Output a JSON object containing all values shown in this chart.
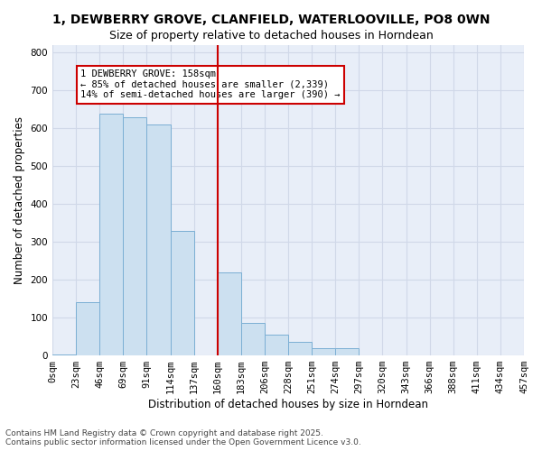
{
  "title": "1, DEWBERRY GROVE, CLANFIELD, WATERLOOVILLE, PO8 0WN",
  "subtitle": "Size of property relative to detached houses in Horndean",
  "xlabel": "Distribution of detached houses by size in Horndean",
  "ylabel": "Number of detached properties",
  "bins": [
    "0sqm",
    "23sqm",
    "46sqm",
    "69sqm",
    "91sqm",
    "114sqm",
    "137sqm",
    "160sqm",
    "183sqm",
    "206sqm",
    "228sqm",
    "251sqm",
    "274sqm",
    "297sqm",
    "320sqm",
    "343sqm",
    "366sqm",
    "388sqm",
    "411sqm",
    "434sqm",
    "457sqm"
  ],
  "bar_heights": [
    2,
    140,
    640,
    630,
    610,
    330,
    0,
    220,
    85,
    55,
    35,
    20,
    20,
    0,
    0,
    0,
    0,
    0,
    0,
    0
  ],
  "bar_color": "#cce0f0",
  "bar_edge_color": "#7bafd4",
  "vline_x": 7,
  "vline_color": "#cc0000",
  "annotation_text": "1 DEWBERRY GROVE: 158sqm\n← 85% of detached houses are smaller (2,339)\n14% of semi-detached houses are larger (390) →",
  "annotation_box_color": "#ffffff",
  "annotation_box_edge": "#cc0000",
  "ylim": [
    0,
    820
  ],
  "yticks": [
    0,
    100,
    200,
    300,
    400,
    500,
    600,
    700,
    800
  ],
  "grid_color": "#d0d8e8",
  "bg_color": "#e8eef8",
  "footnote": "Contains HM Land Registry data © Crown copyright and database right 2025.\nContains public sector information licensed under the Open Government Licence v3.0.",
  "title_fontsize": 10,
  "subtitle_fontsize": 9,
  "axis_label_fontsize": 8.5,
  "tick_fontsize": 7.5,
  "annotation_fontsize": 7.5,
  "footnote_fontsize": 6.5
}
